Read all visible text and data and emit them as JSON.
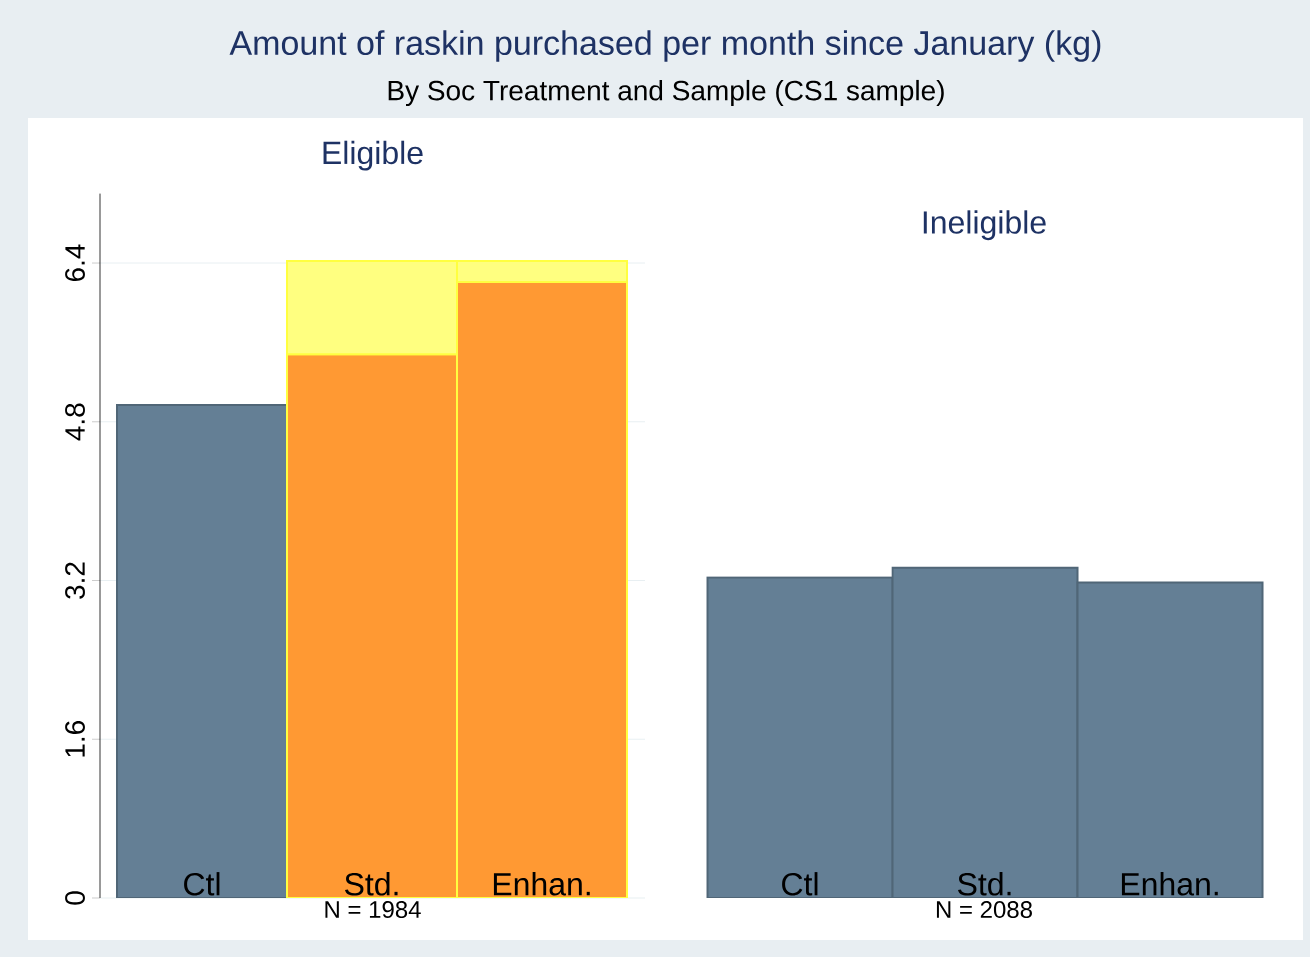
{
  "chart_data": [
    {
      "type": "bar",
      "title": "Eligible",
      "xlabel": "N = 1984",
      "annotations": [
        "Amount of raskin purchased per month since January (kg)",
        "By Soc Treatment and Sample (CS1 sample)"
      ],
      "categories": [
        "Ctl",
        "Std.",
        "Enhan."
      ],
      "stacked": true,
      "series": [
        {
          "colors": [
            "#647f95",
            "#ff9933",
            "#ff9933"
          ],
          "values": [
            4.97,
            5.48,
            6.21
          ]
        },
        {
          "color": "#ffff80",
          "values": [
            null,
            0.94,
            0.21
          ]
        }
      ],
      "ylim": [
        0,
        7.1
      ],
      "yticks": [
        0,
        1.6,
        3.2,
        4.8,
        6.4
      ],
      "grid": "y"
    },
    {
      "type": "bar",
      "title": "Ineligible",
      "xlabel": "N = 2088",
      "categories": [
        "Ctl",
        "Std.",
        "Enhan."
      ],
      "series": [
        {
          "color": "#647f95",
          "values": [
            3.23,
            3.33,
            3.18
          ]
        }
      ],
      "ylim": [
        0,
        6.4
      ],
      "yticks": [
        0,
        1.6,
        3.2,
        4.8,
        6.4
      ],
      "grid": "y",
      "tick_labels": "x"
    }
  ]
}
